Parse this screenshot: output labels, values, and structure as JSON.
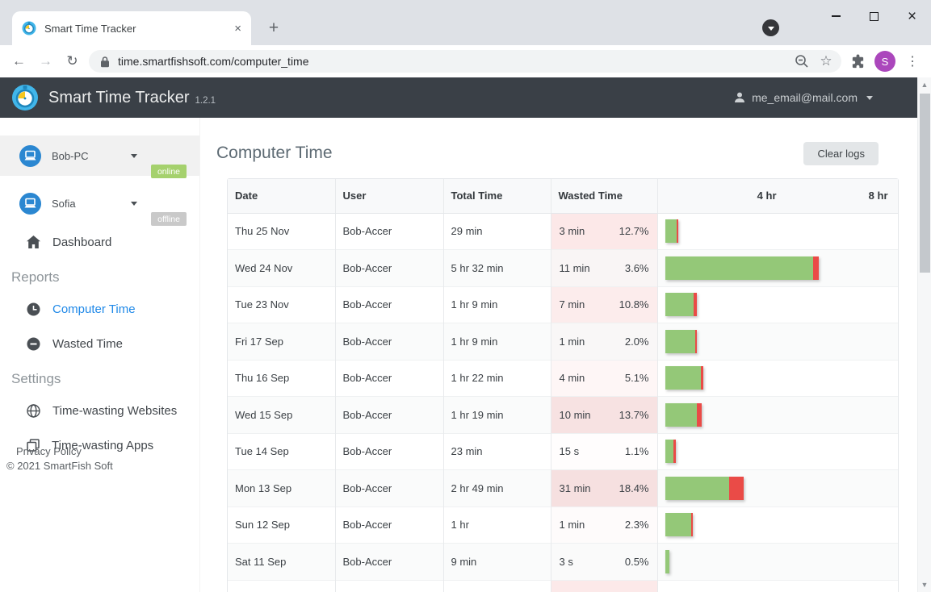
{
  "browser": {
    "tab_title": "Smart Time Tracker",
    "url": "time.smartfishsoft.com/computer_time",
    "avatar_letter": "S",
    "avatar_color": "#ab47bc"
  },
  "app_header": {
    "title": "Smart Time Tracker",
    "version": "1.2.1",
    "account_email": "me_email@mail.com"
  },
  "sidebar": {
    "devices": [
      {
        "name": "Bob-PC",
        "status": "online",
        "selected": true
      },
      {
        "name": "Sofia",
        "status": "offline",
        "selected": false
      }
    ],
    "dashboard_label": "Dashboard",
    "reports_section": {
      "label": "Reports",
      "items": [
        {
          "label": "Computer Time",
          "active": true
        },
        {
          "label": "Wasted Time",
          "active": false
        }
      ]
    },
    "settings_section": {
      "label": "Settings",
      "items": [
        {
          "label": "Time-wasting Websites"
        },
        {
          "label": "Time-wasting Apps"
        }
      ]
    },
    "privacy_policy": "Privacy Policy",
    "copyright": "© 2021 SmartFish Soft"
  },
  "main": {
    "title": "Computer Time",
    "clear_logs_label": "Clear logs",
    "table": {
      "columns": [
        "Date",
        "User",
        "Total Time",
        "Wasted Time"
      ],
      "axis_labels": {
        "four_hr": "4 hr",
        "eight_hr": "8 hr"
      },
      "colors": {
        "bar_green": "#94c878",
        "bar_red": "#ea4b47",
        "wasted_tint": "#e95a5a",
        "online_badge": "#a5d16d",
        "offline_badge": "#c9c9c9",
        "active_link": "#2089e8"
      },
      "rows": [
        {
          "date": "Thu 25 Nov",
          "user": "Bob-Accer",
          "total_time": "29 min",
          "wasted_time": "3 min",
          "wasted_pct": "12.7%",
          "total_hours": 0.48
        },
        {
          "date": "Wed 24 Nov",
          "user": "Bob-Accer",
          "total_time": "5 hr 32 min",
          "wasted_time": "11 min",
          "wasted_pct": "3.6%",
          "total_hours": 5.53
        },
        {
          "date": "Tue 23 Nov",
          "user": "Bob-Accer",
          "total_time": "1 hr 9 min",
          "wasted_time": "7 min",
          "wasted_pct": "10.8%",
          "total_hours": 1.15
        },
        {
          "date": "Fri 17 Sep",
          "user": "Bob-Accer",
          "total_time": "1 hr 9 min",
          "wasted_time": "1 min",
          "wasted_pct": "2.0%",
          "total_hours": 1.15
        },
        {
          "date": "Thu 16 Sep",
          "user": "Bob-Accer",
          "total_time": "1 hr 22 min",
          "wasted_time": "4 min",
          "wasted_pct": "5.1%",
          "total_hours": 1.37
        },
        {
          "date": "Wed 15 Sep",
          "user": "Bob-Accer",
          "total_time": "1 hr 19 min",
          "wasted_time": "10 min",
          "wasted_pct": "13.7%",
          "total_hours": 1.32
        },
        {
          "date": "Tue 14 Sep",
          "user": "Bob-Accer",
          "total_time": "23 min",
          "wasted_time": "15 s",
          "wasted_pct": "1.1%",
          "total_hours": 0.38
        },
        {
          "date": "Mon 13 Sep",
          "user": "Bob-Accer",
          "total_time": "2 hr 49 min",
          "wasted_time": "31 min",
          "wasted_pct": "18.4%",
          "total_hours": 2.82
        },
        {
          "date": "Sun 12 Sep",
          "user": "Bob-Accer",
          "total_time": "1 hr",
          "wasted_time": "1 min",
          "wasted_pct": "2.3%",
          "total_hours": 1.0
        },
        {
          "date": "Sat 11 Sep",
          "user": "Bob-Accer",
          "total_time": "9 min",
          "wasted_time": "3 s",
          "wasted_pct": "0.5%",
          "total_hours": 0.15
        }
      ],
      "partial_next_row_visible": true
    }
  }
}
